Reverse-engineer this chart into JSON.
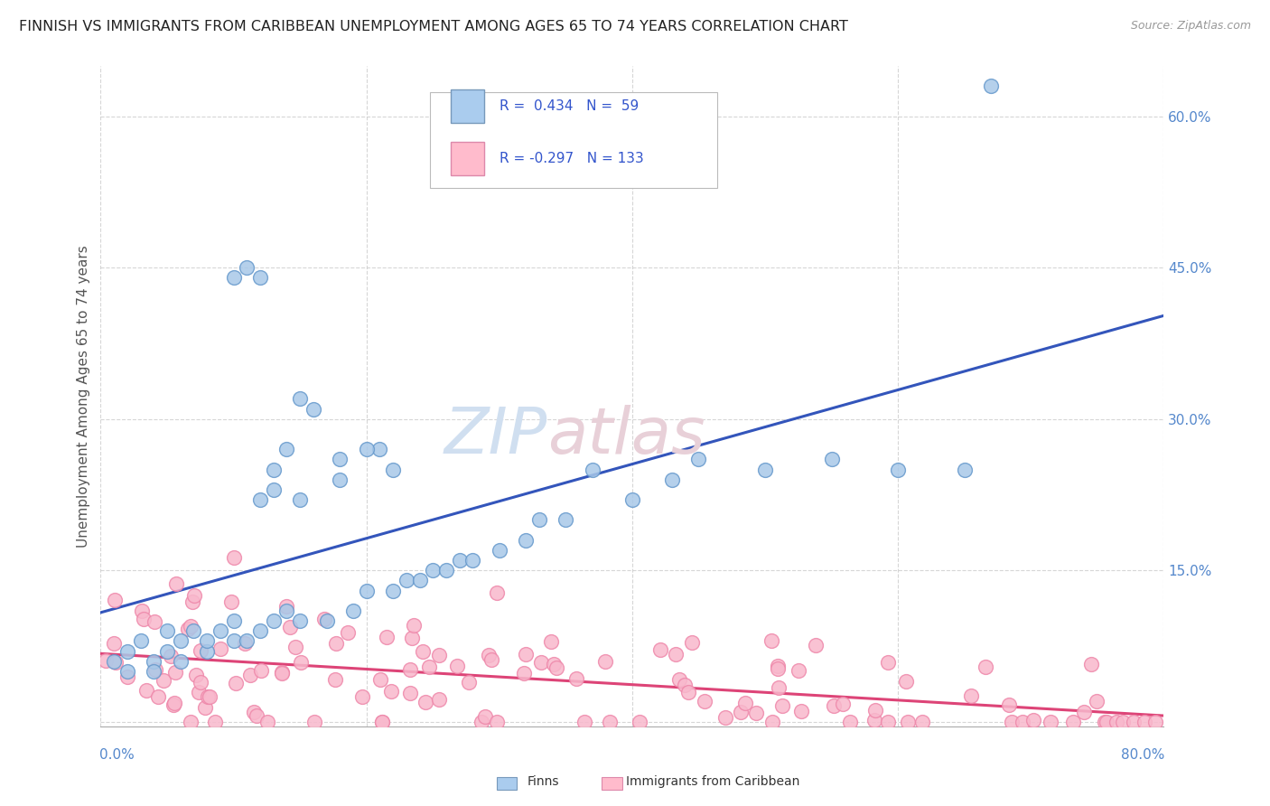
{
  "title": "FINNISH VS IMMIGRANTS FROM CARIBBEAN UNEMPLOYMENT AMONG AGES 65 TO 74 YEARS CORRELATION CHART",
  "source": "Source: ZipAtlas.com",
  "ylabel": "Unemployment Among Ages 65 to 74 years",
  "xlim": [
    0.0,
    0.8
  ],
  "ylim": [
    -0.005,
    0.65
  ],
  "yticks": [
    0.0,
    0.15,
    0.3,
    0.45,
    0.6
  ],
  "finns_color_face": "#a8c8e8",
  "finns_color_edge": "#6699cc",
  "caribbean_color_face": "#f8b8cc",
  "caribbean_color_edge": "#ee88aa",
  "finns_line_color": "#3355bb",
  "caribbean_line_color": "#dd4477",
  "background_color": "#ffffff",
  "grid_color": "#cccccc",
  "title_color": "#222222",
  "axis_label_color": "#555555",
  "tick_color": "#5588cc",
  "watermark_text": "ZIP",
  "watermark_text2": "atlas",
  "legend_blue_face": "#aaccee",
  "legend_blue_edge": "#7799bb",
  "legend_pink_face": "#ffbbcc",
  "legend_pink_edge": "#dd88aa"
}
